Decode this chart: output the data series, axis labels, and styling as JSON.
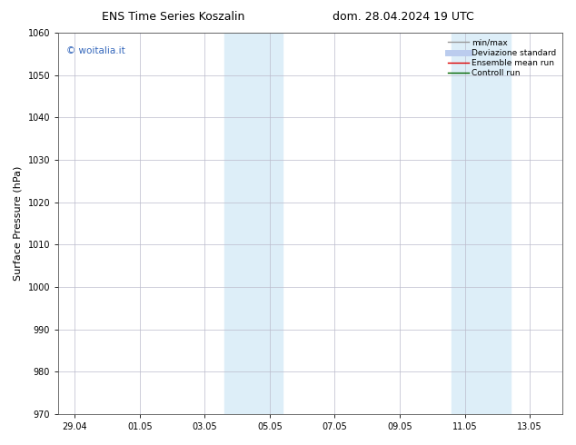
{
  "title_left": "ENS Time Series Koszalin",
  "title_right": "dom. 28.04.2024 19 UTC",
  "ylabel": "Surface Pressure (hPa)",
  "ylim": [
    970,
    1060
  ],
  "yticks": [
    970,
    980,
    990,
    1000,
    1010,
    1020,
    1030,
    1040,
    1050,
    1060
  ],
  "xtick_positions": [
    0,
    2,
    4,
    6,
    8,
    10,
    12,
    14
  ],
  "xtick_labels": [
    "29.04",
    "01.05",
    "03.05",
    "05.05",
    "07.05",
    "09.05",
    "11.05",
    "13.05"
  ],
  "xlim": [
    -0.5,
    15.0
  ],
  "bg_color": "#ffffff",
  "plot_bg_color": "#ffffff",
  "band_color": "#ddeef8",
  "band1_x1": 4.6,
  "band1_x2": 6.4,
  "band2_x1": 11.6,
  "band2_x2": 13.4,
  "watermark_text": "© woitalia.it",
  "watermark_color": "#3366bb",
  "legend_items": [
    {
      "label": "min/max",
      "color": "#999999",
      "lw": 1.0
    },
    {
      "label": "Deviazione standard",
      "color": "#bbccee",
      "lw": 5.0
    },
    {
      "label": "Ensemble mean run",
      "color": "#dd0000",
      "lw": 1.0
    },
    {
      "label": "Controll run",
      "color": "#006600",
      "lw": 1.0
    }
  ],
  "grid_color": "#bbbbcc",
  "tick_fontsize": 7,
  "label_fontsize": 8,
  "title_fontsize": 9,
  "watermark_fontsize": 7.5,
  "legend_fontsize": 6.5
}
